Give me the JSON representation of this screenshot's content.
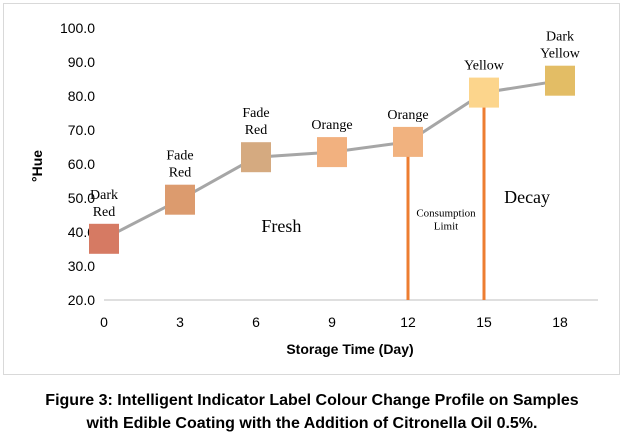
{
  "chart_data": {
    "type": "line",
    "x": [
      0,
      3,
      6,
      9,
      12,
      15,
      18
    ],
    "series": [
      {
        "values": [
          38.0,
          49.5,
          62.0,
          63.5,
          66.5,
          81.0,
          84.5
        ]
      }
    ],
    "point_colors": [
      "#d67a63",
      "#dc9b6e",
      "#d5aa80",
      "#f2b17f",
      "#f1b27f",
      "#fcd58c",
      "#e3bd65"
    ],
    "line_color": "#a6a6a6",
    "point_labels": [
      [
        "Dark",
        "Red"
      ],
      [
        "Fade",
        "Red"
      ],
      [
        "Fade",
        "Red"
      ],
      [
        "Orange"
      ],
      [
        "Orange"
      ],
      [
        "Yellow"
      ],
      [
        "Dark",
        "Yellow"
      ]
    ],
    "xlabel": "Storage Time (Day)",
    "ylabel": "°Hue",
    "xticks": [
      "0",
      "3",
      "6",
      "9",
      "12",
      "15",
      "18"
    ],
    "yticks": [
      "20.0",
      "30.0",
      "40.0",
      "50.0",
      "60.0",
      "70.0",
      "80.0",
      "90.0",
      "100.0"
    ],
    "ylim": [
      20,
      100
    ],
    "grid": false,
    "vertical_lines": [
      {
        "x": 12,
        "color": "#ed7d31"
      },
      {
        "x": 15,
        "color": "#ed7d31"
      }
    ],
    "annotations": [
      {
        "lines": [
          "Fresh"
        ],
        "x": 7.0,
        "y": 40.0
      },
      {
        "lines": [
          "Consumption",
          "Limit"
        ],
        "x": 13.5,
        "y": 44.5
      },
      {
        "lines": [
          "Decay"
        ],
        "x": 16.7,
        "y": 48.5
      }
    ]
  },
  "caption": {
    "line1": "Figure 3: Intelligent Indicator Label Colour Change Profile on Samples",
    "line2": "with Edible Coating with the Addition of Citronella Oil 0.5%."
  }
}
